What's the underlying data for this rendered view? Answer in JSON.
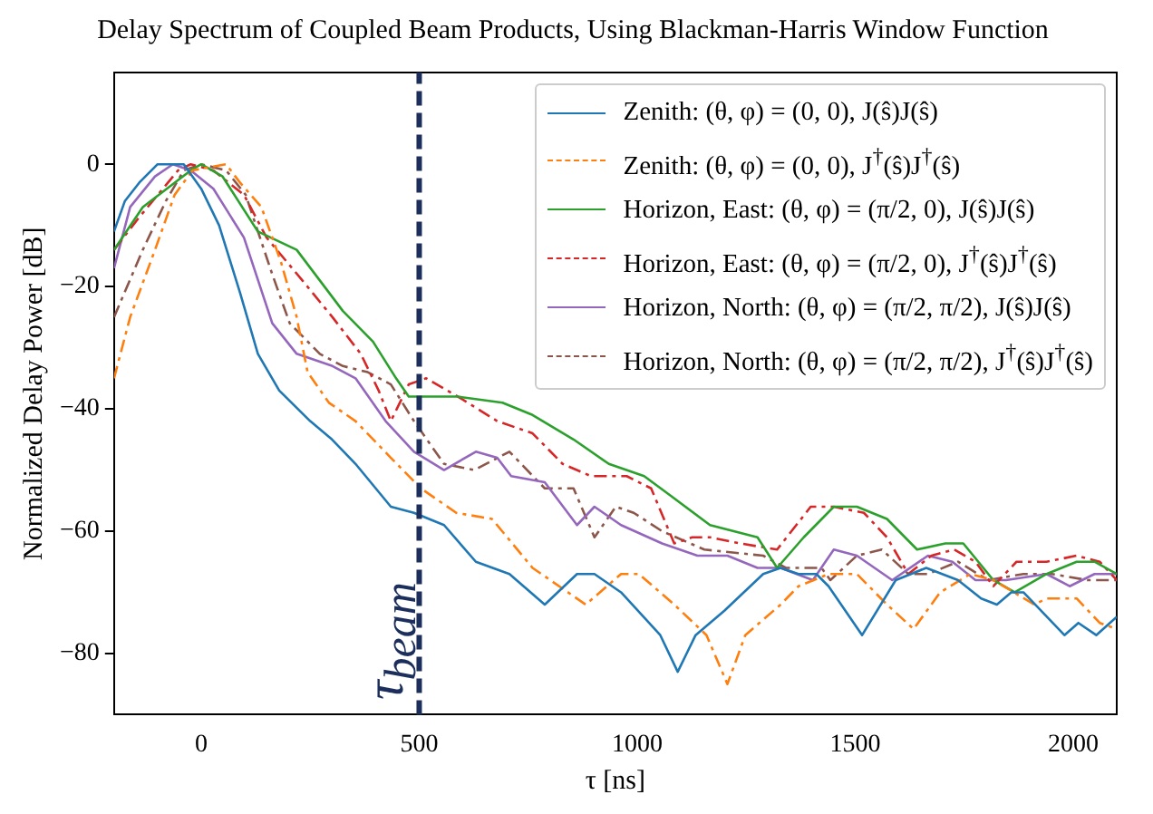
{
  "chart_data": {
    "type": "line",
    "title": "Delay Spectrum of Coupled Beam Products, Using Blackman-Harris Window Function",
    "xlabel": "τ [ns]",
    "ylabel": "Normalized Delay Power [dB]",
    "xlim": [
      -200,
      2100
    ],
    "ylim": [
      -90,
      15
    ],
    "xticks": [
      0,
      500,
      1000,
      1500,
      2000
    ],
    "yticks": [
      0,
      -20,
      -40,
      -60,
      -80
    ],
    "grid": false,
    "legend": "top right",
    "marker": "none",
    "ref_lines": [
      {
        "axis": "x",
        "value": 500,
        "label": "τ$_{beam}$",
        "color": "#1c2e5c",
        "line_style": "dashed"
      }
    ],
    "series": [
      {
        "name": "Zenith: (θ, φ) = (0, 0), J(ŝ)J(ŝ)",
        "color": "#1f77b4",
        "line_style": "solid",
        "x": [
          -200,
          -175,
          -142,
          -100,
          -40,
          0,
          41,
          89,
          130,
          179,
          250,
          300,
          354,
          435,
          488,
          557,
          630,
          707,
          788,
          862,
          902,
          963,
          1053,
          1093,
          1134,
          1200,
          1289,
          1329,
          1370,
          1411,
          1439,
          1516,
          1593,
          1663,
          1736,
          1789,
          1825,
          1858,
          1886,
          1980,
          2012,
          2053,
          2100
        ],
        "values": [
          -11,
          -6,
          -3,
          0,
          0,
          -4,
          -10,
          -21,
          -31,
          -37,
          -42,
          -45,
          -49,
          -56,
          -57,
          -59,
          -65,
          -67,
          -72,
          -67,
          -67,
          -70,
          -77,
          -83,
          -77,
          -73,
          -67,
          -66,
          -67,
          -67,
          -69,
          -77,
          -68,
          -66,
          -68,
          -71,
          -72,
          -70,
          -70,
          -77,
          -75,
          -77,
          -74
        ]
      },
      {
        "name": "Zenith: (θ, φ) = (0, 0), J$^{†}$(ŝ)J$^{†}$(ŝ)",
        "color": "#ff7f0e",
        "line_style": "dashed",
        "x": [
          -200,
          -163,
          -106,
          -61,
          -20,
          57,
          89,
          138,
          183,
          219,
          244,
          293,
          354,
          435,
          504,
          585,
          667,
          760,
          882,
          963,
          1004,
          1085,
          1159,
          1207,
          1248,
          1329,
          1370,
          1439,
          1480,
          1504,
          1573,
          1634,
          1695,
          1764,
          1817,
          1911,
          1939,
          2008,
          2061,
          2100
        ],
        "values": [
          -35,
          -25,
          -14,
          -5,
          -1,
          0,
          -3,
          -7,
          -16,
          -25,
          -34,
          -39,
          -42,
          -48,
          -53,
          -57,
          -58,
          -66,
          -72,
          -67,
          -67,
          -72,
          -77,
          -85,
          -77,
          -72,
          -69,
          -67,
          -67,
          -67,
          -72,
          -76,
          -70,
          -67,
          -68,
          -72,
          -71,
          -71,
          -75,
          -76
        ]
      },
      {
        "name": "Horizon, East: (θ, φ) = (π/2, 0), J(ŝ)J(ŝ)",
        "color": "#2ca02c",
        "line_style": "solid",
        "x": [
          -200,
          -134,
          -24,
          0,
          49,
          130,
          219,
          272,
          325,
          394,
          447,
          476,
          589,
          691,
          760,
          854,
          935,
          1016,
          1073,
          1167,
          1276,
          1321,
          1382,
          1451,
          1504,
          1573,
          1642,
          1707,
          1748,
          1817,
          1866,
          1939,
          2008,
          2049,
          2100
        ],
        "values": [
          -14,
          -7,
          -1,
          0,
          -2,
          -11,
          -14,
          -19,
          -24,
          -29,
          -35,
          -38,
          -38,
          -39,
          -41,
          -45,
          -49,
          -51,
          -54,
          -59,
          -61,
          -66,
          -61,
          -56,
          -56,
          -58,
          -63,
          -62,
          -62,
          -68,
          -70,
          -67,
          -65,
          -65,
          -67
        ]
      },
      {
        "name": "Horizon, East: (θ, φ) = (π/2, 0), J$^{†}$(ŝ)J$^{†}$(ŝ)",
        "color": "#d62728",
        "line_style": "dashed",
        "x": [
          -200,
          -146,
          -53,
          -24,
          28,
          98,
          150,
          232,
          301,
          366,
          407,
          435,
          476,
          516,
          589,
          679,
          760,
          829,
          894,
          976,
          1032,
          1085,
          1126,
          1167,
          1236,
          1321,
          1398,
          1451,
          1520,
          1573,
          1622,
          1675,
          1727,
          1776,
          1817,
          1870,
          1939,
          2008,
          2061,
          2100
        ],
        "values": [
          -14,
          -9,
          -1,
          0,
          -1,
          -5,
          -12,
          -19,
          -25,
          -31,
          -37,
          -42,
          -36,
          -35,
          -38,
          -42,
          -44,
          -49,
          -51,
          -51,
          -53,
          -62,
          -61,
          -61,
          -62,
          -63,
          -56,
          -56,
          -57,
          -61,
          -67,
          -64,
          -63,
          -65,
          -69,
          -65,
          -65,
          -64,
          -65,
          -68
        ]
      },
      {
        "name": "Horizon, North: (θ, φ) = (π/2, π/2), J(ŝ)J(ŝ)",
        "color": "#9467bd",
        "line_style": "solid",
        "x": [
          -200,
          -163,
          -106,
          -65,
          -24,
          28,
          98,
          163,
          219,
          301,
          354,
          423,
          488,
          557,
          630,
          679,
          711,
          788,
          862,
          902,
          963,
          1057,
          1138,
          1207,
          1276,
          1329,
          1403,
          1451,
          1504,
          1585,
          1667,
          1723,
          1776,
          1846,
          1939,
          1992,
          2049,
          2100
        ],
        "values": [
          -17,
          -7,
          -2,
          0,
          -1,
          -4,
          -12,
          -26,
          -31,
          -33,
          -35,
          -42,
          -47,
          -50,
          -47,
          -48,
          -51,
          -52,
          -59,
          -56,
          -59,
          -62,
          -64,
          -64,
          -66,
          -66,
          -68,
          -63,
          -64,
          -68,
          -64,
          -65,
          -68,
          -68,
          -67,
          -69,
          -67,
          -67
        ]
      },
      {
        "name": "Horizon, North: (θ, φ) = (π/2, π/2), J$^{†}$(ŝ)J$^{†}$(ŝ)",
        "color": "#8c564b",
        "line_style": "dashed",
        "x": [
          -200,
          -134,
          -81,
          -40,
          0,
          57,
          102,
          163,
          203,
          272,
          325,
          382,
          435,
          488,
          557,
          626,
          707,
          788,
          854,
          902,
          951,
          992,
          1057,
          1154,
          1289,
          1341,
          1423,
          1443,
          1504,
          1561,
          1622,
          1667,
          1736,
          1805,
          1886,
          1951,
          2033,
          2100
        ],
        "values": [
          -25,
          -14,
          -6,
          -1,
          0,
          -1,
          -5,
          -18,
          -26,
          -31,
          -33,
          -34,
          -36,
          -42,
          -49,
          -50,
          -47,
          -53,
          -53,
          -61,
          -56,
          -57,
          -60,
          -63,
          -64,
          -66,
          -66,
          -68,
          -64,
          -63,
          -67,
          -67,
          -65,
          -68,
          -67,
          -67,
          -68,
          -68
        ]
      }
    ]
  }
}
